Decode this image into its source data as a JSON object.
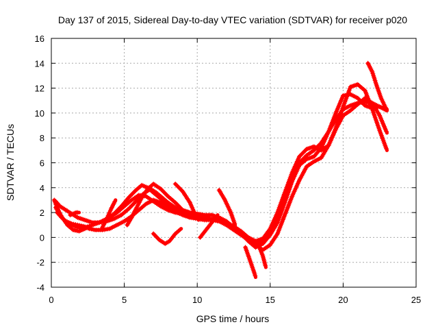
{
  "chart_data": {
    "type": "scatter",
    "title": "Day 137 of 2015, Sidereal Day-to-day VTEC variation (SDTVAR) for receiver p020",
    "xlabel": "GPS time / hours",
    "ylabel": "SDTVAR / TECUs",
    "xlim": [
      0,
      25
    ],
    "ylim": [
      -4,
      16
    ],
    "xticks": [
      0,
      5,
      10,
      15,
      20,
      25
    ],
    "yticks": [
      -4,
      -2,
      0,
      2,
      4,
      6,
      8,
      10,
      12,
      14,
      16
    ],
    "grid": true,
    "marker": "plus",
    "color": "#ff0000",
    "series": [
      {
        "x": [
          0.2,
          0.4,
          0.6,
          0.8,
          1.0,
          1.3,
          1.6,
          1.9,
          2.2,
          2.6,
          3.0,
          3.5,
          4.0,
          4.5,
          5.0,
          5.5,
          6.0,
          6.5,
          7.0,
          7.5,
          8.0,
          8.5,
          9.0,
          9.5,
          10.0,
          10.5,
          11.0,
          11.5,
          12.0,
          12.5,
          13.0,
          13.5,
          14.0,
          14.5,
          15.0,
          15.5,
          16.0,
          16.5,
          17.0,
          17.5,
          18.0,
          18.5,
          19.0,
          19.5,
          20.0,
          20.5,
          21.0,
          21.5,
          22.0,
          22.5,
          23.0
        ],
        "y": [
          3.0,
          2.4,
          1.9,
          1.5,
          1.3,
          1.1,
          0.9,
          0.8,
          0.8,
          0.9,
          1.1,
          1.3,
          1.6,
          2.0,
          2.5,
          3.0,
          3.4,
          3.3,
          2.9,
          2.5,
          2.2,
          2.0,
          1.9,
          1.8,
          1.7,
          1.6,
          1.5,
          1.3,
          1.0,
          0.6,
          0.2,
          -0.2,
          -0.5,
          -0.3,
          0.5,
          1.8,
          3.5,
          5.0,
          6.0,
          6.6,
          7.0,
          7.6,
          8.5,
          9.5,
          10.3,
          10.6,
          10.8,
          10.9,
          10.8,
          10.5,
          10.2
        ]
      },
      {
        "x": [
          0.3,
          0.5,
          0.8,
          1.1,
          1.5,
          1.9,
          2.3,
          2.8,
          3.3,
          3.8,
          4.3,
          4.8,
          5.3,
          5.8,
          6.2,
          6.6,
          7.0,
          7.5,
          8.0,
          8.5,
          9.0,
          9.5,
          10.0,
          10.5,
          11.0,
          11.5,
          12.0,
          12.5,
          13.0,
          13.5,
          14.0,
          14.5,
          15.0,
          15.5,
          16.0,
          16.5,
          17.0,
          17.5,
          18.0,
          18.5,
          19.0,
          19.5,
          20.0,
          20.5,
          21.0,
          21.5,
          22.0,
          22.5,
          23.0
        ],
        "y": [
          2.4,
          2.0,
          1.5,
          1.0,
          0.6,
          0.5,
          0.7,
          1.0,
          1.2,
          1.5,
          1.9,
          2.5,
          3.2,
          3.8,
          4.2,
          4.0,
          3.6,
          3.1,
          2.6,
          2.2,
          2.1,
          2.0,
          1.9,
          1.8,
          1.8,
          1.6,
          1.3,
          0.8,
          0.3,
          -0.3,
          -0.8,
          -0.5,
          0.2,
          1.2,
          2.8,
          4.5,
          5.8,
          6.3,
          6.5,
          7.2,
          8.5,
          10.0,
          11.4,
          11.5,
          11.2,
          10.6,
          10.4,
          10.5,
          10.3
        ]
      },
      {
        "x": [
          0.3,
          0.6,
          1.0,
          1.4,
          1.8,
          2.3,
          2.8,
          3.3,
          3.8,
          4.3,
          4.8,
          5.3,
          5.8,
          6.3,
          6.8,
          7.2,
          7.6,
          8.0,
          8.5,
          9.0,
          9.5,
          10.0,
          10.5,
          11.0,
          11.5,
          12.0,
          12.5,
          13.0,
          13.5,
          14.0,
          14.5,
          15.0,
          15.5,
          16.0,
          16.5,
          17.0,
          17.5,
          18.0,
          18.5,
          19.0,
          19.5,
          20.0,
          20.5,
          21.0,
          21.5,
          22.0,
          22.5,
          23.0
        ],
        "y": [
          2.9,
          2.5,
          2.2,
          1.9,
          1.6,
          1.4,
          1.2,
          1.2,
          1.3,
          1.5,
          1.8,
          2.3,
          2.9,
          3.5,
          3.9,
          3.6,
          3.2,
          2.8,
          2.4,
          2.2,
          2.0,
          1.8,
          1.6,
          1.5,
          1.4,
          1.2,
          0.8,
          0.4,
          0.0,
          -0.3,
          -0.1,
          0.7,
          2.0,
          3.6,
          5.2,
          6.5,
          7.1,
          7.3,
          7.0,
          7.4,
          8.8,
          10.5,
          12.1,
          12.3,
          11.8,
          10.3,
          8.6,
          7.0
        ]
      },
      {
        "x": [
          0.4,
          0.7,
          1.0,
          1.4,
          1.8,
          2.2,
          2.6,
          3.0,
          3.5,
          4.0,
          4.5,
          5.0,
          5.5,
          6.0,
          6.5,
          7.0,
          7.5,
          8.0,
          8.5,
          9.0,
          9.5,
          10.0,
          10.5,
          11.0,
          11.5,
          12.0,
          12.5,
          13.0,
          13.5,
          14.0,
          14.5,
          15.0,
          15.5,
          16.0,
          16.5,
          17.0,
          17.5,
          18.0,
          18.5,
          19.0,
          19.5,
          20.0,
          20.5,
          21.0,
          21.5,
          22.0,
          22.5,
          23.0
        ],
        "y": [
          2.0,
          1.6,
          1.3,
          1.1,
          1.0,
          0.9,
          0.7,
          0.6,
          0.6,
          0.7,
          1.0,
          1.3,
          1.7,
          2.2,
          2.7,
          3.0,
          2.8,
          2.5,
          2.1,
          1.8,
          1.6,
          1.5,
          1.4,
          1.4,
          1.3,
          1.2,
          0.9,
          0.5,
          0.0,
          -0.6,
          -1.0,
          -0.6,
          0.3,
          1.8,
          3.3,
          4.6,
          5.7,
          6.1,
          6.4,
          7.4,
          8.7,
          9.8,
          10.2,
          10.7,
          11.2,
          10.8,
          9.8,
          8.4
        ]
      },
      {
        "x": [
          13.3,
          13.6,
          13.9,
          14.0
        ],
        "y": [
          -0.8,
          -1.8,
          -2.8,
          -3.2
        ]
      },
      {
        "x": [
          14.2,
          14.5,
          14.7
        ],
        "y": [
          -0.6,
          -1.5,
          -2.4
        ]
      },
      {
        "x": [
          21.7,
          22.0,
          22.3,
          22.6,
          23.0
        ],
        "y": [
          14.0,
          13.3,
          12.2,
          11.2,
          10.2
        ]
      },
      {
        "x": [
          7.0,
          7.4,
          7.8,
          8.1,
          8.5,
          8.9
        ],
        "y": [
          0.3,
          -0.2,
          -0.5,
          -0.3,
          0.3,
          0.7
        ]
      },
      {
        "x": [
          8.5,
          9.0,
          9.5,
          9.8,
          10.1
        ],
        "y": [
          4.3,
          3.7,
          2.8,
          2.0,
          1.4
        ]
      },
      {
        "x": [
          11.5,
          11.9,
          12.3,
          12.6
        ],
        "y": [
          3.8,
          3.0,
          2.0,
          1.0
        ]
      },
      {
        "x": [
          10.2,
          10.6,
          11.0,
          11.4
        ],
        "y": [
          0.0,
          0.6,
          1.2,
          1.8
        ]
      },
      {
        "x": [
          3.5,
          3.8,
          4.1,
          4.4
        ],
        "y": [
          0.8,
          1.5,
          2.3,
          3.0
        ]
      },
      {
        "x": [
          1.3,
          1.5,
          1.7,
          1.9
        ],
        "y": [
          1.8,
          1.9,
          2.0,
          2.0
        ]
      },
      {
        "x": [
          5.2,
          5.5,
          5.8,
          6.2,
          6.6,
          7.0,
          7.5,
          8.0,
          8.5,
          9.0
        ],
        "y": [
          1.0,
          1.6,
          2.3,
          3.2,
          3.9,
          4.3,
          3.9,
          3.3,
          2.8,
          2.2
        ]
      }
    ]
  }
}
